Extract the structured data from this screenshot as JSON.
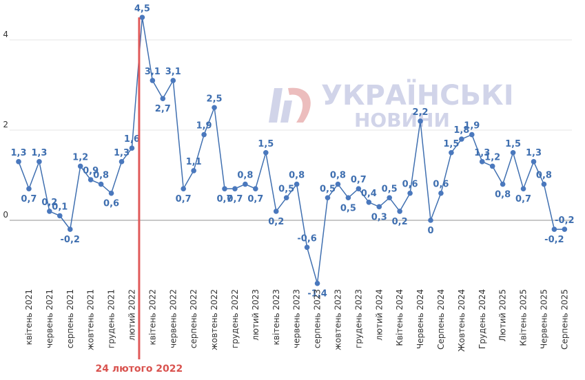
{
  "watermark": {
    "line1": "УКРАЇНСЬКІ",
    "line2": "НОВИНИ"
  },
  "colors": {
    "line": "#3f6fb0",
    "marker": "#4a78bd",
    "annotation": "#e05a5a",
    "grid": "#e6e6e6",
    "zero": "#c8c8c8"
  },
  "chart_data": {
    "type": "line",
    "xlabel": "",
    "ylabel": "",
    "ylim": [
      -1.5,
      4.5
    ],
    "yticks": [
      0,
      2,
      4
    ],
    "grid": true,
    "values": [
      1.3,
      0.7,
      1.3,
      0.2,
      0.1,
      -0.2,
      1.2,
      0.9,
      0.8,
      0.6,
      1.3,
      1.6,
      4.5,
      3.1,
      2.7,
      3.1,
      0.7,
      1.1,
      1.9,
      2.5,
      0.7,
      0.7,
      0.8,
      0.7,
      1.5,
      0.2,
      0.5,
      0.8,
      -0.6,
      -1.4,
      0.5,
      0.8,
      0.5,
      0.7,
      0.4,
      0.3,
      0.5,
      0.2,
      0.6,
      2.2,
      0,
      0.6,
      1.5,
      1.8,
      1.9,
      1.3,
      1.2,
      0.8,
      1.5,
      0.7,
      1.3,
      0.8,
      -0.2,
      -0.2
    ],
    "labels": [
      "1,3",
      "0,7",
      "1,3",
      "0,2",
      "0,1",
      "-0,2",
      "1,2",
      "0,9",
      "0,8",
      "0,6",
      "1,3",
      "1,6",
      "4,5",
      "3,1",
      "2,7",
      "3,1",
      "0,7",
      "1,1",
      "1,9",
      "2,5",
      "0,7",
      "0,7",
      "0,8",
      "0,7",
      "1,5",
      "0,2",
      "0,5",
      "0,8",
      "-0,6",
      "-1,4",
      "0,5",
      "0,8",
      "0,5",
      "0,7",
      "0,4",
      "0,3",
      "0,5",
      "0,2",
      "0,6",
      "2,2",
      "0",
      "0,6",
      "1,5",
      "1,8",
      "1,9",
      "1,3",
      "1,2",
      "0,8",
      "1,5",
      "0,7",
      "1,3",
      "0,8",
      "-0,2",
      "-0,2"
    ],
    "xticks": [
      {
        "index": 1,
        "label": "квітень 2021"
      },
      {
        "index": 3,
        "label": "червень 2021"
      },
      {
        "index": 5,
        "label": "серпень 2021"
      },
      {
        "index": 7,
        "label": "жовтень 2021"
      },
      {
        "index": 9,
        "label": "грудень 2021"
      },
      {
        "index": 11,
        "label": "лютий 2022"
      },
      {
        "index": 13,
        "label": "квітень 2022"
      },
      {
        "index": 15,
        "label": "червень 2022"
      },
      {
        "index": 17,
        "label": "серпень 2022"
      },
      {
        "index": 19,
        "label": "жовтень 2022"
      },
      {
        "index": 21,
        "label": "грудень 2022"
      },
      {
        "index": 23,
        "label": "лютий 2023"
      },
      {
        "index": 25,
        "label": "квітень 2023"
      },
      {
        "index": 27,
        "label": "червень 2023"
      },
      {
        "index": 29,
        "label": "серпень 2023"
      },
      {
        "index": 31,
        "label": "жовтень 2023"
      },
      {
        "index": 33,
        "label": "грудень 2023"
      },
      {
        "index": 35,
        "label": "лютий 2024"
      },
      {
        "index": 37,
        "label": "Квітень 2024"
      },
      {
        "index": 39,
        "label": "Червень 2024"
      },
      {
        "index": 41,
        "label": "Серпень 2024"
      },
      {
        "index": 43,
        "label": "Жовтень 2024"
      },
      {
        "index": 45,
        "label": "Грудень 2024"
      },
      {
        "index": 47,
        "label": "Лютий 2025"
      },
      {
        "index": 49,
        "label": "Квітень 2025"
      },
      {
        "index": 51,
        "label": "Червень 2025"
      },
      {
        "index": 53,
        "label": "Серпень 2025"
      }
    ],
    "event": {
      "label": "24 лютого 2022",
      "index": 11.7
    }
  }
}
